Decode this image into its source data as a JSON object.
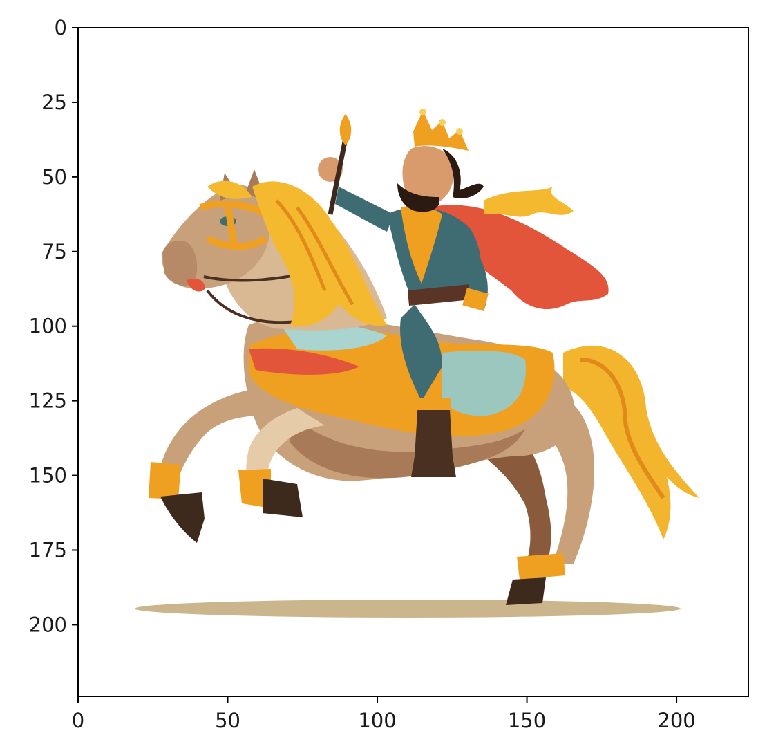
{
  "axes": {
    "xlim": [
      0,
      224
    ],
    "ylim": [
      224,
      0
    ],
    "x_ticks": [
      0,
      50,
      100,
      150,
      200
    ],
    "y_ticks": [
      0,
      25,
      50,
      75,
      100,
      125,
      150,
      175,
      200
    ],
    "x_tick_labels": [
      "0",
      "50",
      "100",
      "150",
      "200"
    ],
    "y_tick_labels": [
      "0",
      "25",
      "50",
      "75",
      "100",
      "125",
      "150",
      "175",
      "200"
    ]
  },
  "image": {
    "subject": "cartoon king with crown and scepter riding a rearing horse",
    "colors": {
      "horse_body": "#c8a07a",
      "horse_dark": "#8a5a3c",
      "mane": "#f5b930",
      "tunic": "#3f6b73",
      "cape": "#e2553a",
      "gold": "#f0a020",
      "beard": "#2b1a12",
      "hoof": "#4a3020",
      "shadow": "#c9b08a"
    }
  }
}
